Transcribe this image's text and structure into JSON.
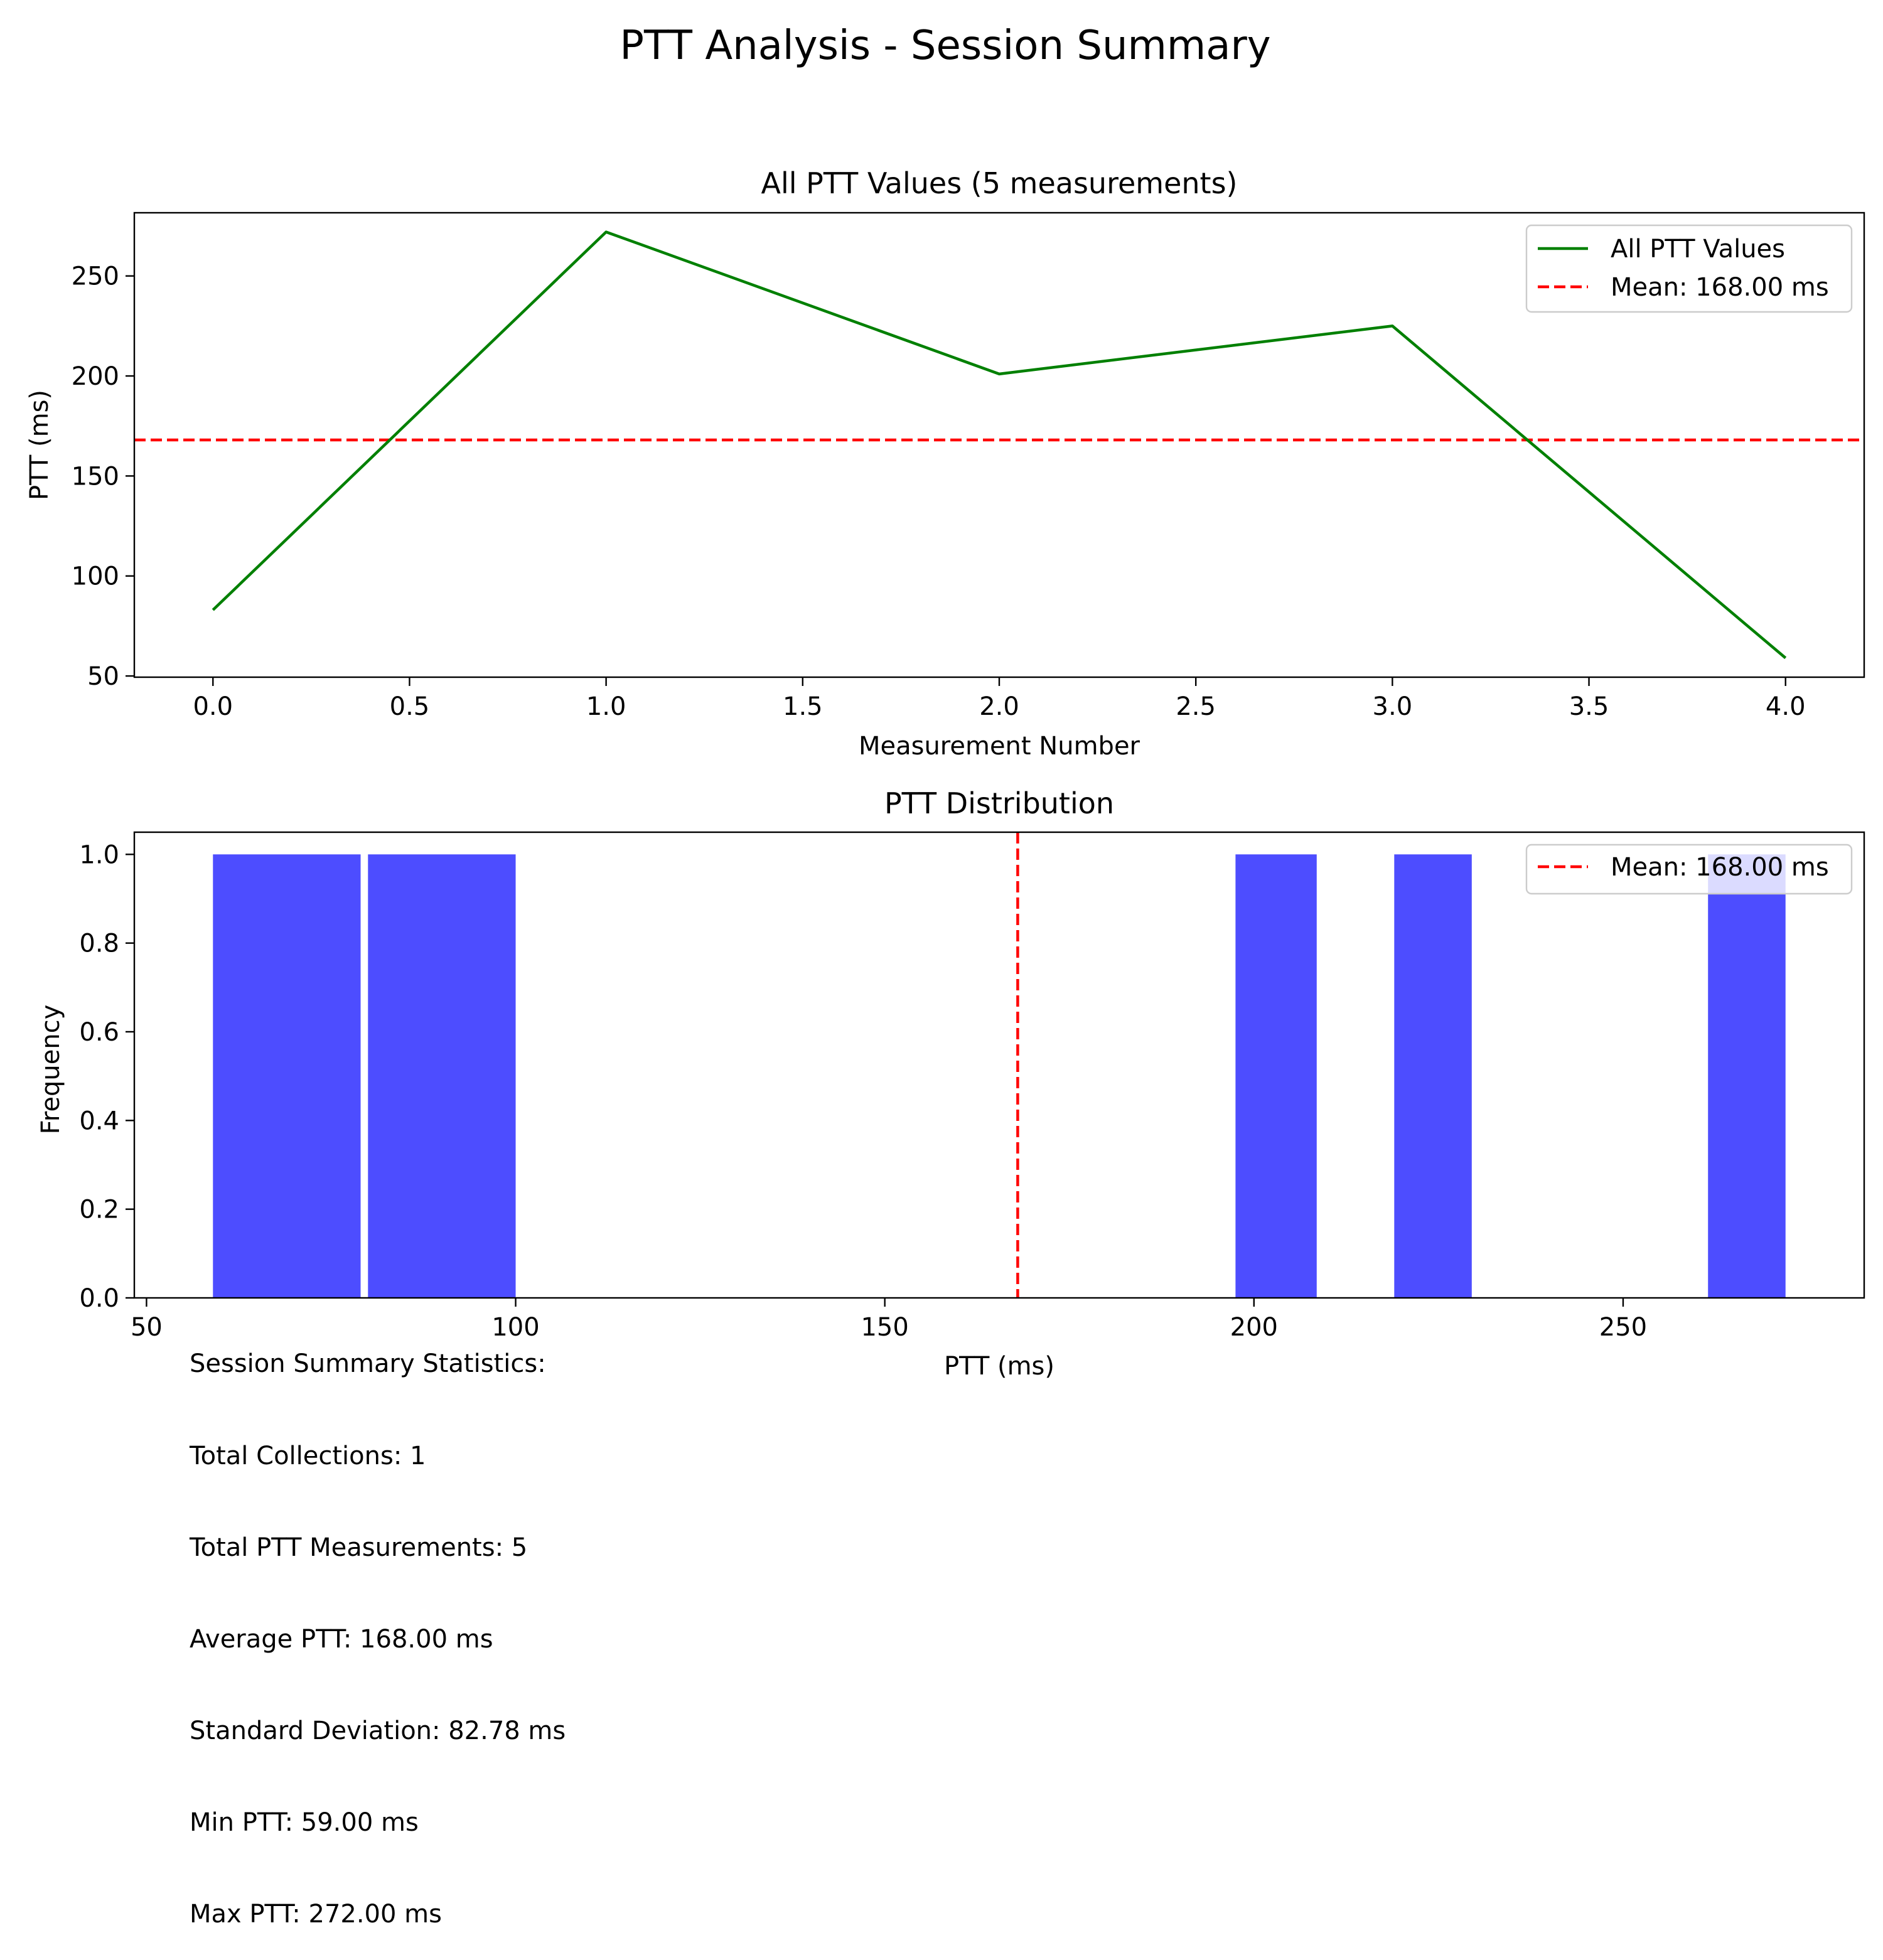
{
  "figure_title": "PTT Analysis - Session Summary",
  "chart_data": [
    {
      "type": "line",
      "title": "All PTT Values (5 measurements)",
      "xlabel": "Measurement Number",
      "ylabel": "PTT (ms)",
      "x": [
        0,
        1,
        2,
        3,
        4
      ],
      "series": [
        {
          "name": "All PTT Values",
          "values": [
            83,
            272,
            201,
            225,
            59
          ],
          "color": "#008000"
        }
      ],
      "reference_lines": [
        {
          "orientation": "horizontal",
          "value": 168,
          "label": "Mean: 168.00 ms",
          "color": "#ff0000",
          "style": "dashed"
        }
      ],
      "xlim": [
        -0.2,
        4.2
      ],
      "ylim": [
        49.4,
        281.6
      ],
      "xticks": [
        0.0,
        0.5,
        1.0,
        1.5,
        2.0,
        2.5,
        3.0,
        3.5,
        4.0
      ],
      "xtick_labels": [
        "0.0",
        "0.5",
        "1.0",
        "1.5",
        "2.0",
        "2.5",
        "3.0",
        "3.5",
        "4.0"
      ],
      "yticks": [
        50,
        100,
        150,
        200,
        250
      ],
      "ytick_labels": [
        "50",
        "100",
        "150",
        "200",
        "250"
      ],
      "legend": "top-right",
      "grid": false
    },
    {
      "type": "bar",
      "title": "PTT Distribution",
      "xlabel": "PTT (ms)",
      "ylabel": "Frequency",
      "bins": [
        {
          "start": 59.0,
          "end": 79.0,
          "count": 1
        },
        {
          "start": 80.0,
          "end": 100.0,
          "count": 1
        },
        {
          "start": 197.5,
          "end": 208.5,
          "count": 1
        },
        {
          "start": 219.0,
          "end": 229.5,
          "count": 1
        },
        {
          "start": 261.5,
          "end": 272.0,
          "count": 1
        }
      ],
      "bar_color": "#4d4dff",
      "reference_lines": [
        {
          "orientation": "vertical",
          "value": 168,
          "label": "Mean: 168.00 ms",
          "color": "#ff0000",
          "style": "dashed"
        }
      ],
      "xlim": [
        48.35,
        282.65
      ],
      "ylim": [
        0,
        1.05
      ],
      "xticks": [
        50,
        100,
        150,
        200,
        250
      ],
      "xtick_labels": [
        "50",
        "100",
        "150",
        "200",
        "250"
      ],
      "yticks": [
        0.0,
        0.2,
        0.4,
        0.6,
        0.8,
        1.0
      ],
      "ytick_labels": [
        "0.0",
        "0.2",
        "0.4",
        "0.6",
        "0.8",
        "1.0"
      ],
      "legend": "top-right",
      "grid": false
    }
  ],
  "stats_box": {
    "lines": [
      "Session Summary Statistics:",
      "Total Collections: 1",
      "Total PTT Measurements: 5",
      "Average PTT: 168.00 ms",
      "Standard Deviation: 82.78 ms",
      "Min PTT: 59.00 ms",
      "Max PTT: 272.00 ms"
    ]
  }
}
